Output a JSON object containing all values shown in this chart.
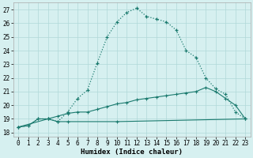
{
  "xlabel": "Humidex (Indice chaleur)",
  "bg_color": "#d6f0f0",
  "grid_color": "#b0d8d8",
  "line_color": "#1a7a6e",
  "xlim": [
    -0.5,
    23.5
  ],
  "ylim": [
    17.7,
    27.5
  ],
  "yticks": [
    18,
    19,
    20,
    21,
    22,
    23,
    24,
    25,
    26,
    27
  ],
  "xticks": [
    0,
    1,
    2,
    3,
    4,
    5,
    6,
    7,
    8,
    9,
    10,
    11,
    12,
    13,
    14,
    15,
    16,
    17,
    18,
    19,
    20,
    21,
    22,
    23
  ],
  "arch_x": [
    0,
    1,
    2,
    3,
    4,
    5,
    6,
    7,
    8,
    9,
    10,
    11,
    12,
    13,
    14,
    15,
    16,
    17,
    18,
    19,
    20,
    21,
    22,
    23
  ],
  "arch_y": [
    18.4,
    18.5,
    19.0,
    19.0,
    18.8,
    19.5,
    20.5,
    21.1,
    23.1,
    25.0,
    26.1,
    26.8,
    27.1,
    26.5,
    26.3,
    26.1,
    25.5,
    24.0,
    23.5,
    22.0,
    21.2,
    20.8,
    19.5,
    19.0
  ],
  "mid_x": [
    0,
    1,
    2,
    3,
    4,
    5,
    6,
    7,
    8,
    9,
    10,
    11,
    12,
    13,
    14,
    15,
    16,
    17,
    18,
    19,
    20,
    21,
    22,
    23
  ],
  "mid_y": [
    18.4,
    18.5,
    19.0,
    19.0,
    19.2,
    19.4,
    19.5,
    19.5,
    19.7,
    19.9,
    20.1,
    20.2,
    20.4,
    20.5,
    20.6,
    20.7,
    20.8,
    20.9,
    21.0,
    21.3,
    21.0,
    20.5,
    20.0,
    19.0
  ],
  "flat_x": [
    0,
    3,
    4,
    5,
    10,
    23
  ],
  "flat_y": [
    18.4,
    19.0,
    18.8,
    18.8,
    18.8,
    19.0
  ]
}
